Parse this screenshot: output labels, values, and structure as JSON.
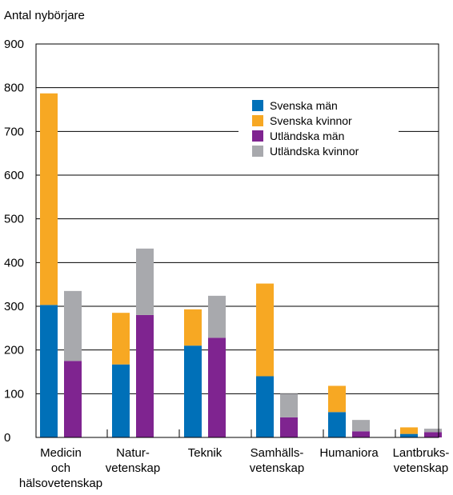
{
  "chart_data": {
    "type": "bar",
    "ylabel": "Antal nybörjare",
    "xlabel": "",
    "ylim": [
      0,
      900
    ],
    "yticks": [
      0,
      100,
      200,
      300,
      400,
      500,
      600,
      700,
      800,
      900
    ],
    "grid": true,
    "legend_position": "top-right",
    "categories": [
      [
        "Medicin",
        "och",
        "hälsovetenskap"
      ],
      [
        "Natur-",
        "vetenskap"
      ],
      [
        "Teknik"
      ],
      [
        "Samhälls-",
        "vetenskap"
      ],
      [
        "Humaniora"
      ],
      [
        "Lantbruks-",
        "vetenskap"
      ]
    ],
    "stacks": [
      {
        "name": "Svenska",
        "series": [
          "Svenska män",
          "Svenska kvinnor"
        ]
      },
      {
        "name": "Utländska",
        "series": [
          "Utländska män",
          "Utländska kvinnor"
        ]
      }
    ],
    "series": [
      {
        "name": "Svenska män",
        "color": "#0070b8",
        "values": [
          303,
          167,
          210,
          140,
          58,
          8
        ]
      },
      {
        "name": "Svenska kvinnor",
        "color": "#f7a823",
        "values": [
          484,
          118,
          83,
          212,
          60,
          15
        ]
      },
      {
        "name": "Utländska män",
        "color": "#7f2490",
        "values": [
          175,
          280,
          228,
          46,
          14,
          12
        ]
      },
      {
        "name": "Utländska kvinnor",
        "color": "#a8a9ad",
        "values": [
          160,
          152,
          96,
          54,
          26,
          8
        ]
      }
    ]
  }
}
